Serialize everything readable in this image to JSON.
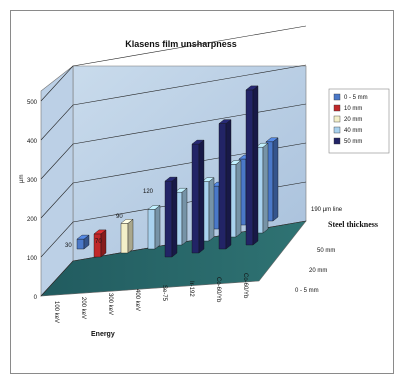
{
  "chart_data": {
    "type": "bar",
    "title": "Klasens film unsharpness",
    "xlabel": "Energy",
    "ylabel": "µm",
    "zlabel": "Steel thickness",
    "categories": [
      "100 keV",
      "200 keV",
      "300 keV",
      "400 keV",
      "Se-75",
      "Ir-192",
      "Co-60/Yb",
      "Co-60/Yb"
    ],
    "depth_labels": [
      "50 mm",
      "20 mm",
      "0 - 5 mm"
    ],
    "yticks": [
      "0",
      "100",
      "200",
      "300",
      "400",
      "500"
    ],
    "ylim": [
      0,
      500
    ],
    "annotations": [
      "30",
      "70",
      "90",
      "120",
      "190 µm line"
    ],
    "legend_position": "right",
    "series": [
      {
        "name": "0 - 5 mm",
        "color": "#4a78c8",
        "values": [
          30,
          null,
          null,
          null,
          null,
          130,
          200,
          240
        ]
      },
      {
        "name": "10 mm",
        "color": "#c0282a",
        "values": [
          null,
          70,
          null,
          null,
          null,
          null,
          null,
          null
        ]
      },
      {
        "name": "20 mm",
        "color": "#f3efc8",
        "values": [
          null,
          null,
          90,
          null,
          null,
          null,
          null,
          null
        ]
      },
      {
        "name": "40 mm",
        "color": "#a9d2ef",
        "values": [
          null,
          null,
          null,
          120,
          160,
          180,
          220,
          260
        ]
      },
      {
        "name": "50 mm",
        "color": "#222466",
        "values": [
          null,
          null,
          null,
          null,
          230,
          330,
          380,
          470
        ]
      }
    ]
  }
}
